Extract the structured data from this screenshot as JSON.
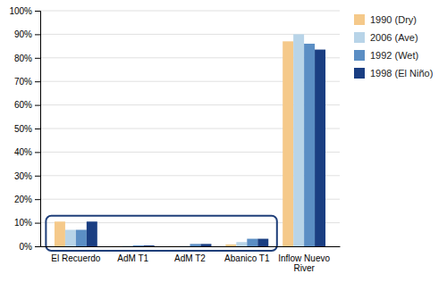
{
  "chart_data": {
    "type": "bar",
    "categories": [
      "El Recuerdo",
      "AdM T1",
      "AdM T2",
      "Abanico T1",
      "Inflow Nuevo\nRiver"
    ],
    "series": [
      {
        "name": "1990 (Dry)",
        "color": "#F5C98A",
        "values": [
          10.5,
          0.1,
          0.1,
          0.8,
          87.0
        ]
      },
      {
        "name": "2006 (Ave)",
        "color": "#B8D4E8",
        "values": [
          7.0,
          0.25,
          0.2,
          1.8,
          90.0
        ]
      },
      {
        "name": "1992 (Wet)",
        "color": "#5B8EC4",
        "values": [
          7.0,
          0.4,
          1.0,
          3.2,
          86.0
        ]
      },
      {
        "name": "1998 (El Niño)",
        "color": "#1A3E82",
        "values": [
          10.5,
          0.4,
          1.0,
          3.2,
          83.5
        ]
      }
    ],
    "ylim": [
      0,
      100
    ],
    "yticks": [
      {
        "value": 0,
        "label": "0%"
      },
      {
        "value": 10,
        "label": "10%"
      },
      {
        "value": 20,
        "label": "20%"
      },
      {
        "value": 30,
        "label": "30%"
      },
      {
        "value": 40,
        "label": "40%"
      },
      {
        "value": 50,
        "label": "50%"
      },
      {
        "value": 60,
        "label": "60%"
      },
      {
        "value": 70,
        "label": "70%"
      },
      {
        "value": 80,
        "label": "80%"
      },
      {
        "value": 90,
        "label": "90%"
      },
      {
        "value": 100,
        "label": "100%"
      }
    ],
    "grid": true,
    "legend": "right"
  }
}
